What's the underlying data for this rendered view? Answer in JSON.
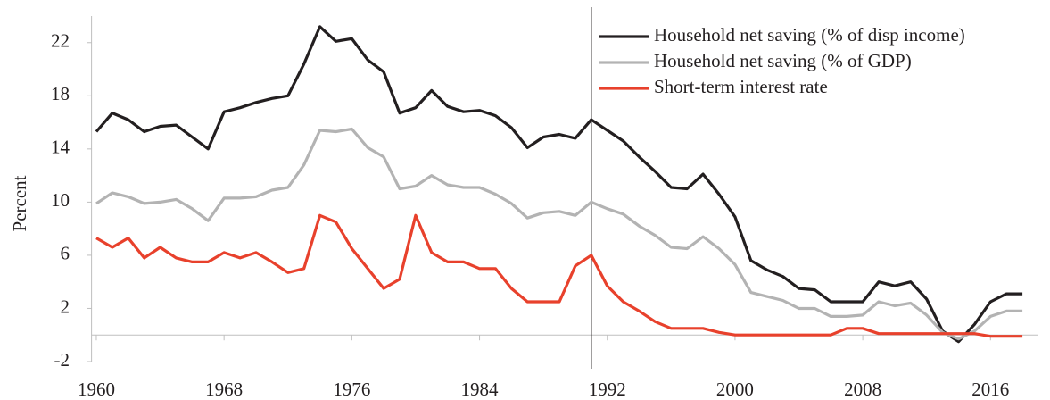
{
  "chart_data": {
    "type": "line",
    "y_label": "Percent",
    "x": [
      1960,
      1961,
      1962,
      1963,
      1964,
      1965,
      1966,
      1967,
      1968,
      1969,
      1970,
      1971,
      1972,
      1973,
      1974,
      1975,
      1976,
      1977,
      1978,
      1979,
      1980,
      1981,
      1982,
      1983,
      1984,
      1985,
      1986,
      1987,
      1988,
      1989,
      1990,
      1991,
      1992,
      1993,
      1994,
      1995,
      1996,
      1997,
      1998,
      1999,
      2000,
      2001,
      2002,
      2003,
      2004,
      2005,
      2006,
      2007,
      2008,
      2009,
      2010,
      2011,
      2012,
      2013,
      2014,
      2015,
      2016,
      2017,
      2018
    ],
    "series": [
      {
        "name": "Household net saving (% of disp income)",
        "color": "#231f20",
        "values": [
          15.3,
          16.7,
          16.2,
          15.3,
          15.7,
          15.8,
          14.9,
          14.0,
          16.8,
          17.1,
          17.5,
          17.8,
          18.0,
          20.4,
          23.2,
          22.1,
          22.3,
          20.7,
          19.8,
          16.7,
          17.1,
          18.4,
          17.2,
          16.8,
          16.9,
          16.5,
          15.6,
          14.1,
          14.9,
          15.1,
          14.8,
          16.2,
          15.4,
          14.6,
          13.4,
          12.3,
          11.1,
          11.0,
          12.1,
          10.6,
          8.9,
          5.6,
          4.9,
          4.4,
          3.5,
          3.4,
          2.5,
          2.5,
          2.5,
          4.0,
          3.7,
          4.0,
          2.7,
          0.3,
          -0.5,
          0.8,
          2.5,
          3.1,
          3.1
        ]
      },
      {
        "name": "Household net saving (% of GDP)",
        "color": "#b3b3b3",
        "values": [
          9.9,
          10.7,
          10.4,
          9.9,
          10.0,
          10.2,
          9.5,
          8.6,
          10.3,
          10.3,
          10.4,
          10.9,
          11.1,
          12.8,
          15.4,
          15.3,
          15.5,
          14.1,
          13.4,
          11.0,
          11.2,
          12.0,
          11.3,
          11.1,
          11.1,
          10.6,
          9.9,
          8.8,
          9.2,
          9.3,
          9.0,
          10.0,
          9.5,
          9.1,
          8.2,
          7.5,
          6.6,
          6.5,
          7.4,
          6.5,
          5.3,
          3.2,
          2.9,
          2.6,
          2.0,
          2.0,
          1.4,
          1.4,
          1.5,
          2.5,
          2.2,
          2.4,
          1.5,
          0.2,
          -0.3,
          0.3,
          1.4,
          1.8,
          1.8
        ]
      },
      {
        "name": "Short-term interest rate",
        "color": "#e8412c",
        "values": [
          7.3,
          6.6,
          7.3,
          5.8,
          6.6,
          5.8,
          5.5,
          5.5,
          6.2,
          5.8,
          6.2,
          5.5,
          4.7,
          5.0,
          9.0,
          8.5,
          6.5,
          5.0,
          3.5,
          4.2,
          9.0,
          6.2,
          5.5,
          5.5,
          5.0,
          5.0,
          3.5,
          2.5,
          2.5,
          2.5,
          5.2,
          6.0,
          3.7,
          2.5,
          1.8,
          1.0,
          0.5,
          0.5,
          0.5,
          0.2,
          0.0,
          0.0,
          0.0,
          0.0,
          0.0,
          0.0,
          0.0,
          0.5,
          0.5,
          0.1,
          0.1,
          0.1,
          0.1,
          0.1,
          0.1,
          0.1,
          -0.1,
          -0.1,
          -0.1
        ]
      }
    ],
    "xlim": [
      1959.7,
      2019
    ],
    "xticks": [
      1960,
      1968,
      1976,
      1984,
      1992,
      2000,
      2008,
      2016
    ],
    "ylim": [
      -2,
      24
    ],
    "yticks": [
      -2,
      2,
      6,
      10,
      14,
      18,
      22
    ],
    "vline_x": 1991,
    "legend": "top-right"
  }
}
